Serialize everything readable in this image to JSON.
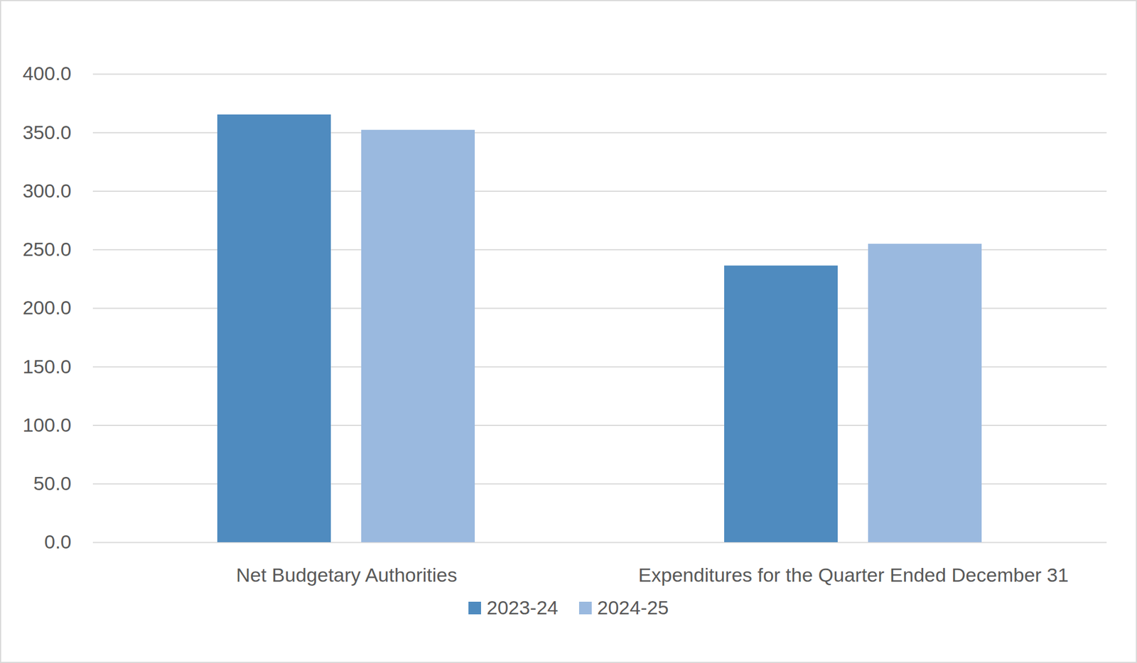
{
  "chart_data": {
    "type": "bar",
    "categories": [
      "Net Budgetary Authorities",
      "Expenditures for the Quarter Ended December 31"
    ],
    "series": [
      {
        "name": "2023-24",
        "color": "#4f8bbf",
        "values": [
          365.3,
          236.3
        ]
      },
      {
        "name": "2024-25",
        "color": "#9ab9df",
        "values": [
          352.2,
          254.9
        ]
      }
    ],
    "ylim": [
      0,
      400
    ],
    "yticks": [
      {
        "value": 0,
        "label": "0.0"
      },
      {
        "value": 50,
        "label": "50.0"
      },
      {
        "value": 100,
        "label": "100.0"
      },
      {
        "value": 150,
        "label": "150.0"
      },
      {
        "value": 200,
        "label": "200.0"
      },
      {
        "value": 250,
        "label": "250.0"
      },
      {
        "value": 300,
        "label": "300.0"
      },
      {
        "value": 350,
        "label": "350.0"
      },
      {
        "value": 400,
        "label": "400.0"
      }
    ],
    "grid": true,
    "legend": "bottom"
  }
}
